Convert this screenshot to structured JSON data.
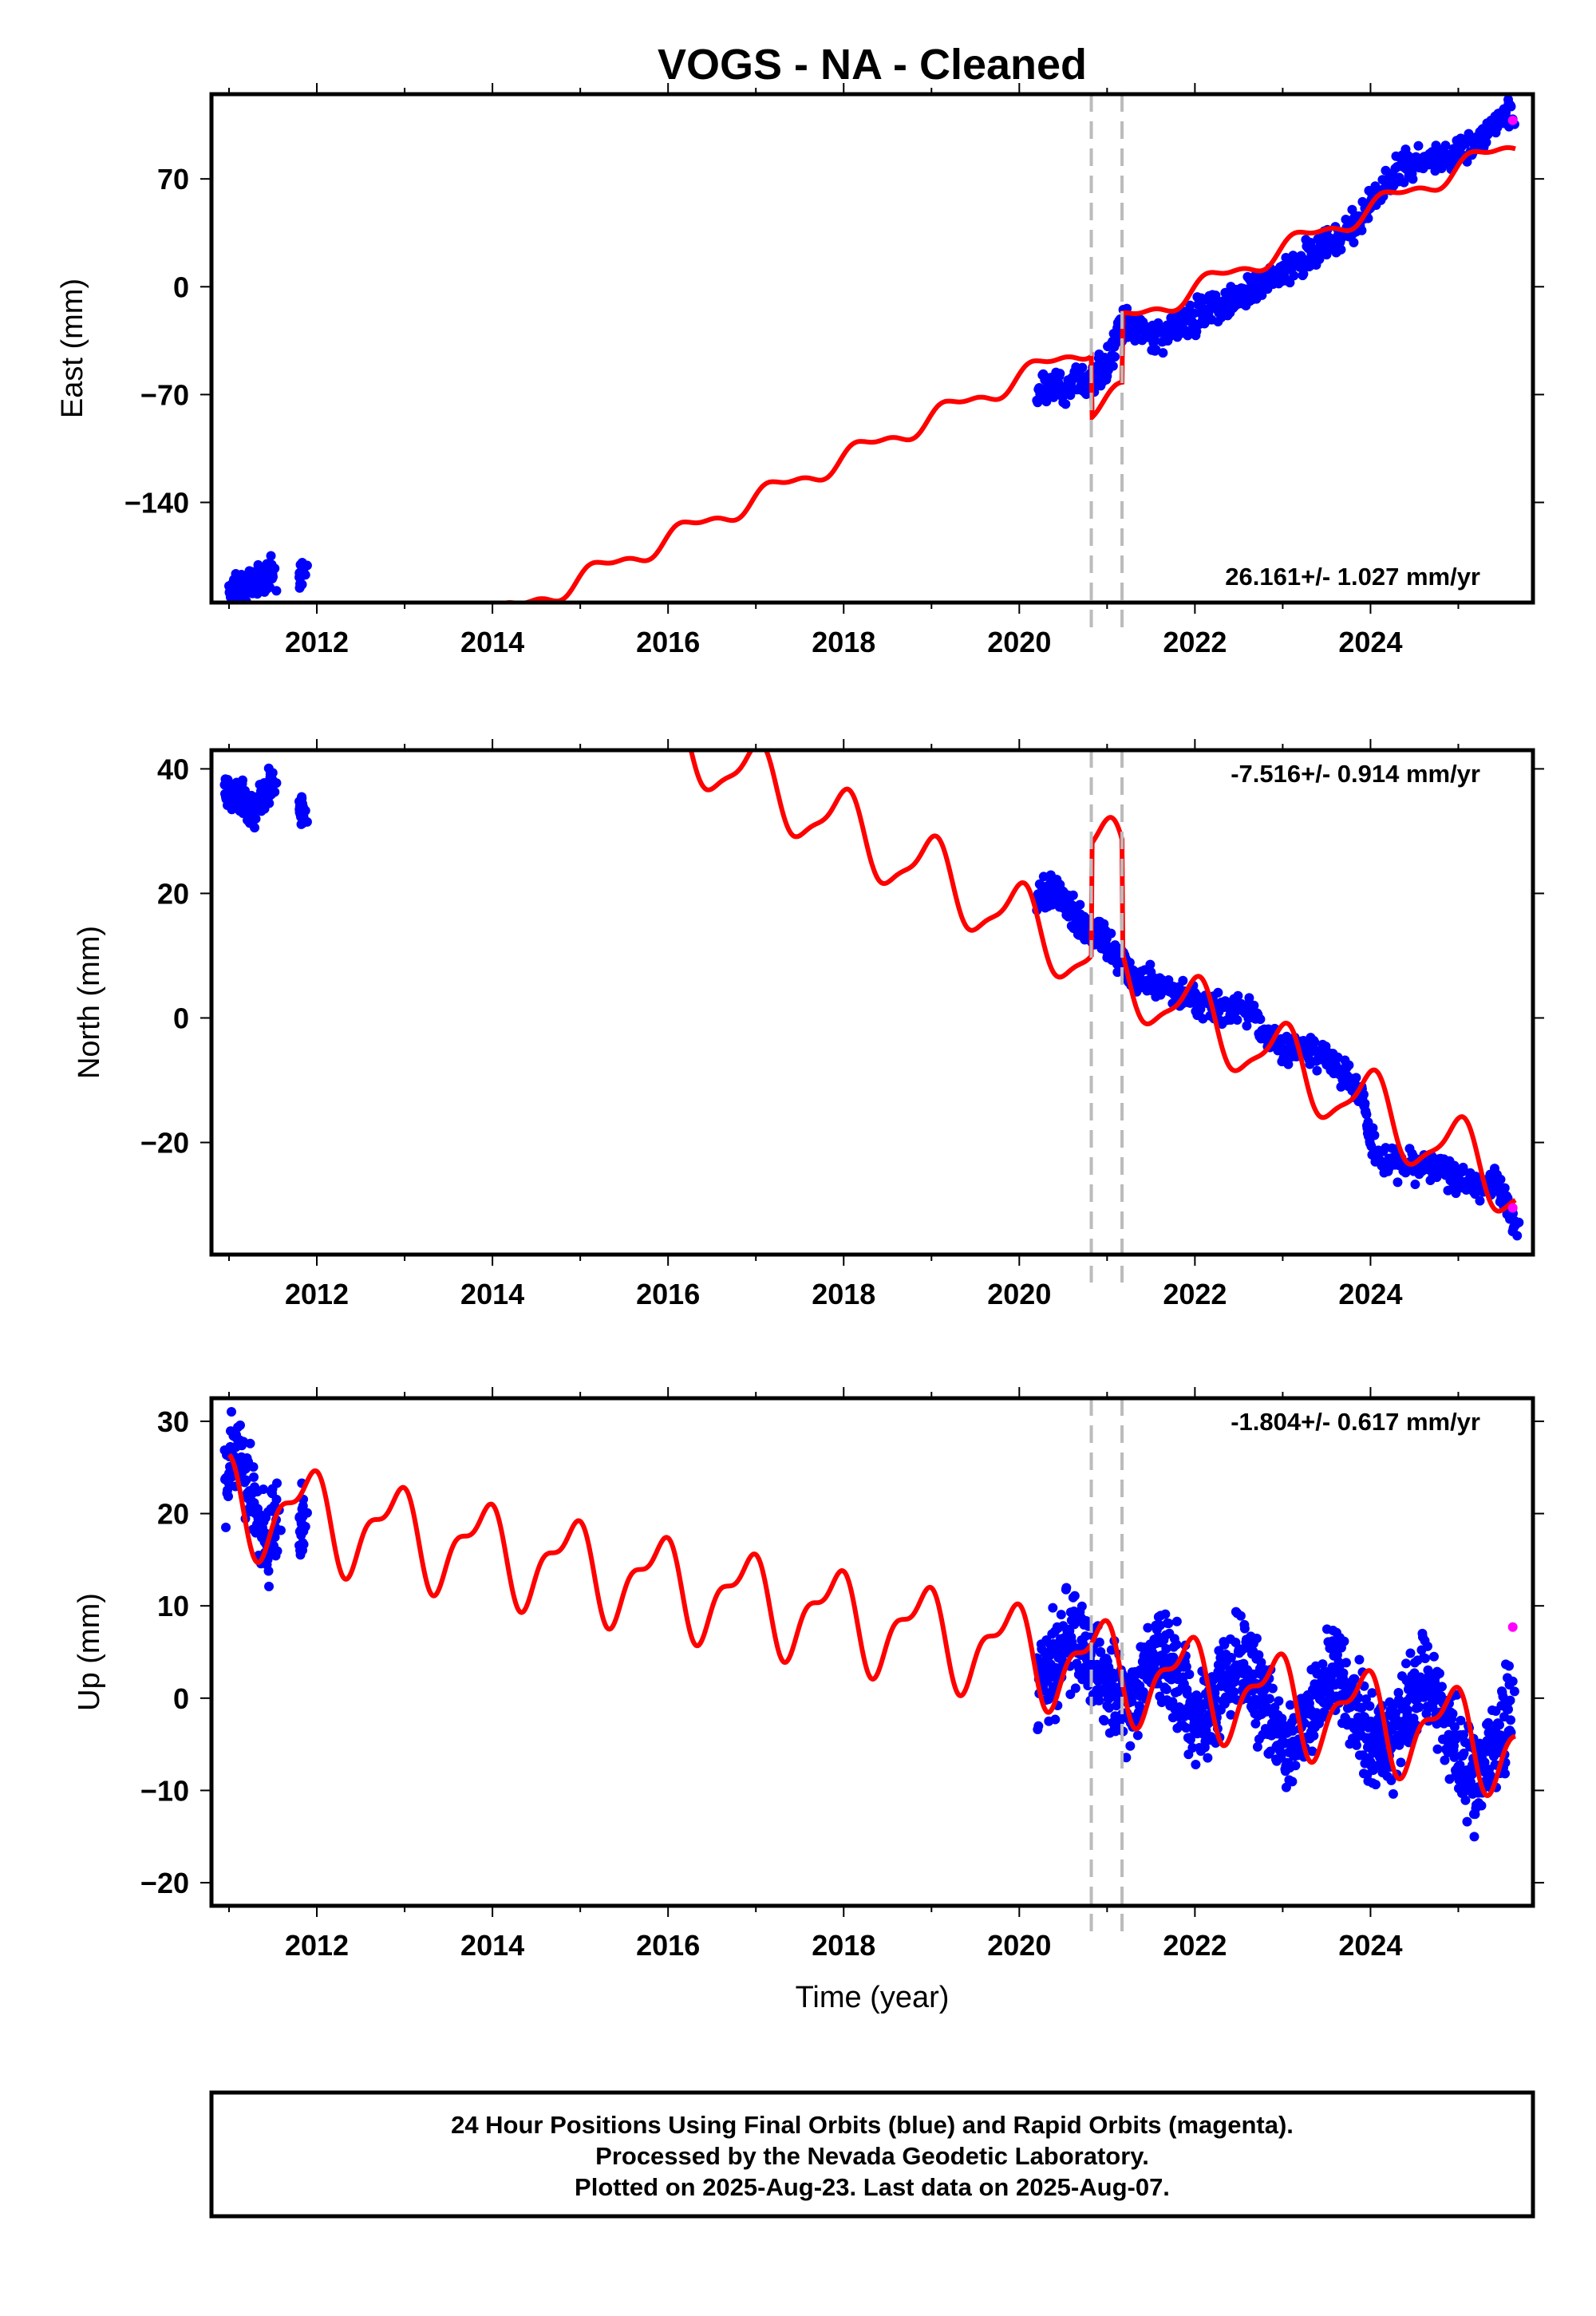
{
  "chart_data": {
    "type": "scatter",
    "title": "VOGS  - NA - Cleaned",
    "xlabel": "Time (year)",
    "x_ticks": [
      2012,
      2014,
      2016,
      2018,
      2020,
      2022,
      2024
    ],
    "xlim": [
      2010.8,
      2025.85
    ],
    "event_lines": [
      2020.82,
      2021.17
    ],
    "colors": {
      "final": "#0000ff",
      "rapid": "#ff00ff",
      "model": "#ff0000",
      "event": "#bbbbbb"
    },
    "panels": [
      {
        "name": "east",
        "ylabel": "East (mm)",
        "ylim": [
          -205,
          125
        ],
        "y_ticks": [
          70,
          0,
          -70,
          -140
        ],
        "y_tick_labels": [
          "70",
          "0",
          "−70",
          "−140"
        ],
        "rate": "26.161+/- 1.027 mm/yr",
        "rate_position": "bottom-right",
        "data_segments": [
          {
            "x": [
              2011.0,
              2011.1,
              2011.2,
              2011.3,
              2011.4,
              2011.5
            ],
            "y": [
              -198,
              -195,
              -193,
              -191,
              -188,
              -186
            ]
          },
          {
            "x": [
              2011.8,
              2011.85
            ],
            "y": [
              -185,
              -184
            ]
          },
          {
            "x": [
              2020.2,
              2020.4,
              2020.6,
              2020.8,
              2020.9,
              2021.0,
              2021.15,
              2021.3,
              2021.5,
              2021.7,
              2021.9,
              2022.1,
              2022.3,
              2022.5,
              2022.7,
              2022.9,
              2023.1,
              2023.3,
              2023.5,
              2023.7,
              2023.9,
              2024.1,
              2024.3,
              2024.5,
              2024.7,
              2024.9,
              2025.1,
              2025.3,
              2025.5,
              2025.6
            ],
            "y": [
              -68,
              -65,
              -62,
              -60,
              -56,
              -52,
              -28,
              -27,
              -30,
              -30,
              -22,
              -17,
              -10,
              -5,
              0,
              5,
              12,
              20,
              28,
              35,
              45,
              62,
              72,
              80,
              82,
              85,
              90,
              100,
              110,
              115
            ]
          }
        ],
        "rapid": {
          "x": [
            2025.62
          ],
          "y": [
            108
          ]
        },
        "model": {
          "rate": 26.161,
          "ref_year": 2022.0,
          "offset": -7,
          "ann_amp": 6.0,
          "ann_phase": 0.2,
          "semi_amp": 2.5,
          "semi_phase": 0.6,
          "jumps": [
            {
              "year": 2020.82,
              "size": -40
            },
            {
              "year": 2021.17,
              "size": 45
            }
          ]
        }
      },
      {
        "name": "north",
        "ylabel": "North (mm)",
        "ylim": [
          -38,
          43
        ],
        "y_ticks": [
          40,
          20,
          0,
          -20
        ],
        "y_tick_labels": [
          "40",
          "20",
          "0",
          "−20"
        ],
        "rate": "-7.516+/- 0.914 mm/yr",
        "rate_position": "top-right",
        "data_segments": [
          {
            "x": [
              2010.95,
              2011.05,
              2011.15,
              2011.25,
              2011.35,
              2011.45,
              2011.5
            ],
            "y": [
              37,
              35,
              36,
              33,
              35,
              37,
              38
            ]
          },
          {
            "x": [
              2011.8,
              2011.85
            ],
            "y": [
              34,
              33
            ]
          },
          {
            "x": [
              2020.2,
              2020.3,
              2020.4,
              2020.5,
              2020.6,
              2020.7,
              2020.8,
              2020.9,
              2021.0,
              2021.1,
              2021.2,
              2021.3,
              2021.5,
              2021.7,
              2021.9,
              2022.1,
              2022.3,
              2022.5,
              2022.7,
              2022.9,
              2023.1,
              2023.3,
              2023.5,
              2023.7,
              2023.9,
              2024.0,
              2024.2,
              2024.4,
              2024.6,
              2024.8,
              2025.0,
              2025.2,
              2025.4,
              2025.55,
              2025.65
            ],
            "y": [
              18,
              20,
              21,
              19,
              17,
              15,
              14,
              14,
              12,
              10,
              8,
              6,
              6,
              4,
              3,
              2,
              1,
              2,
              0,
              -4,
              -5,
              -5,
              -6,
              -9,
              -12,
              -20,
              -23,
              -23,
              -24,
              -25,
              -26,
              -27,
              -26,
              -29,
              -33
            ]
          }
        ],
        "rapid": {
          "x": [
            2025.62
          ],
          "y": [
            -30.5
          ]
        },
        "model": {
          "rate": -7.516,
          "ref_year": 2022.0,
          "offset": 0.5,
          "ann_amp": 5.5,
          "ann_phase": 1.5,
          "semi_amp": 1.5,
          "semi_phase": 0.3,
          "jumps": [
            {
              "year": 2020.82,
              "size": 18
            },
            {
              "year": 2021.17,
              "size": -18
            }
          ]
        }
      },
      {
        "name": "up",
        "ylabel": "Up (mm)",
        "ylim": [
          -22.5,
          32.5
        ],
        "y_ticks": [
          30,
          20,
          10,
          0,
          -10,
          -20
        ],
        "y_tick_labels": [
          "30",
          "20",
          "10",
          "0",
          "−10",
          "−20"
        ],
        "rate": "-1.804+/- 0.617 mm/yr",
        "rate_position": "top-right",
        "data_segments": [
          {
            "x": [
              2010.95,
              2011.05,
              2011.15,
              2011.25,
              2011.35,
              2011.45,
              2011.55
            ],
            "y": [
              22,
              27,
              25,
              22,
              18,
              16,
              19
            ]
          },
          {
            "x": [
              2011.8,
              2011.85
            ],
            "y": [
              20,
              18
            ]
          },
          {
            "x": [
              2020.2,
              2020.3,
              2020.4,
              2020.5,
              2020.6,
              2020.7,
              2020.8,
              2020.9,
              2021.0,
              2021.1,
              2021.2,
              2021.3,
              2021.4,
              2021.5,
              2021.6,
              2021.7,
              2021.8,
              2021.9,
              2022.0,
              2022.1,
              2022.2,
              2022.3,
              2022.4,
              2022.5,
              2022.6,
              2022.7,
              2022.8,
              2022.9,
              2023.0,
              2023.1,
              2023.2,
              2023.3,
              2023.4,
              2023.5,
              2023.6,
              2023.7,
              2023.8,
              2023.9,
              2024.0,
              2024.1,
              2024.2,
              2024.3,
              2024.4,
              2024.5,
              2024.6,
              2024.7,
              2024.8,
              2024.9,
              2025.0,
              2025.1,
              2025.2,
              2025.3,
              2025.4,
              2025.5,
              2025.6
            ],
            "y": [
              0,
              2,
              4,
              6,
              7,
              6,
              4,
              2,
              1,
              0,
              -1,
              0,
              2,
              4,
              5,
              4,
              2,
              0,
              -2,
              -3,
              -1,
              1,
              3,
              4,
              3,
              1,
              -1,
              -3,
              -5,
              -6,
              -4,
              -2,
              0,
              2,
              3,
              1,
              -1,
              -3,
              -5,
              -6,
              -5,
              -3,
              -1,
              1,
              2,
              1,
              -1,
              -3,
              -6,
              -8,
              -9,
              -8,
              -6,
              -3,
              -1
            ]
          }
        ],
        "rapid": {
          "x": [
            2025.62
          ],
          "y": [
            7.7
          ]
        },
        "model": {
          "rate": -1.804,
          "ref_year": 2022.0,
          "offset": 1.5,
          "ann_amp": 4.5,
          "ann_phase": 2.3,
          "semi_amp": 2.0,
          "semi_phase": 1.0,
          "jumps": []
        }
      }
    ]
  },
  "caption_lines": [
    "24 Hour Positions Using Final Orbits (blue) and Rapid Orbits (magenta).",
    "Processed by the Nevada Geodetic Laboratory.",
    "Plotted on 2025-Aug-23. Last data on 2025-Aug-07."
  ]
}
